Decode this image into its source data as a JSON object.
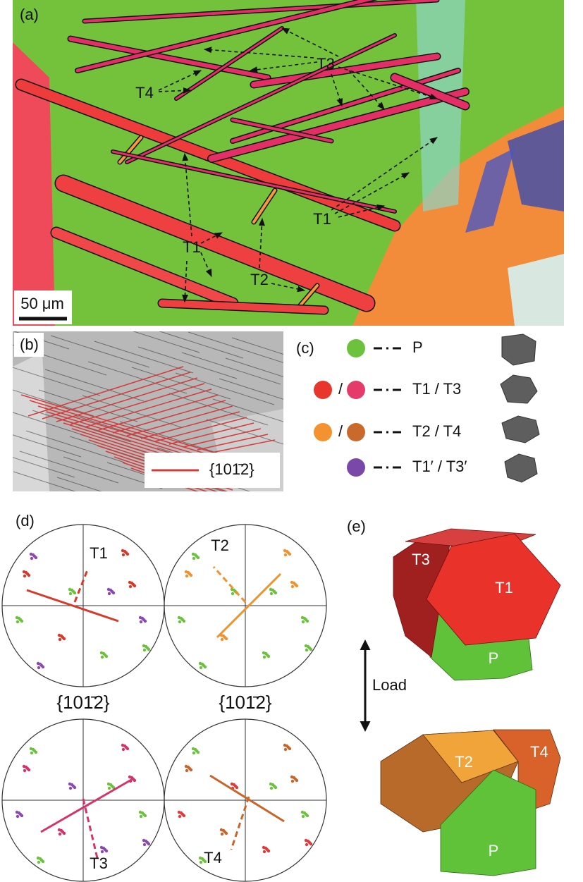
{
  "panel_a": {
    "label": "(a)",
    "annotations": [
      "T3",
      "T4",
      "T1",
      "T1",
      "T2"
    ],
    "scale_bar": "50 μm"
  },
  "panel_b": {
    "label": "(b)",
    "legend": "{101̄2}"
  },
  "panel_c": {
    "label": "(c)",
    "rows": [
      {
        "label": "P"
      },
      {
        "label": "T1 / T3",
        "separator": "/"
      },
      {
        "label": "T2 / T4",
        "separator": "/"
      },
      {
        "label": "T1′ / T3′"
      }
    ]
  },
  "panel_d": {
    "label": "(d)",
    "pole_labels": [
      "T1",
      "T2",
      "T3",
      "T4"
    ],
    "plane_labels": [
      "{101̄2}",
      "{101̄2}"
    ]
  },
  "panel_e": {
    "label": "(e)",
    "top": [
      "T3",
      "T1",
      "P"
    ],
    "load": "Load",
    "bottom": [
      "T2",
      "T4",
      "P"
    ]
  }
}
